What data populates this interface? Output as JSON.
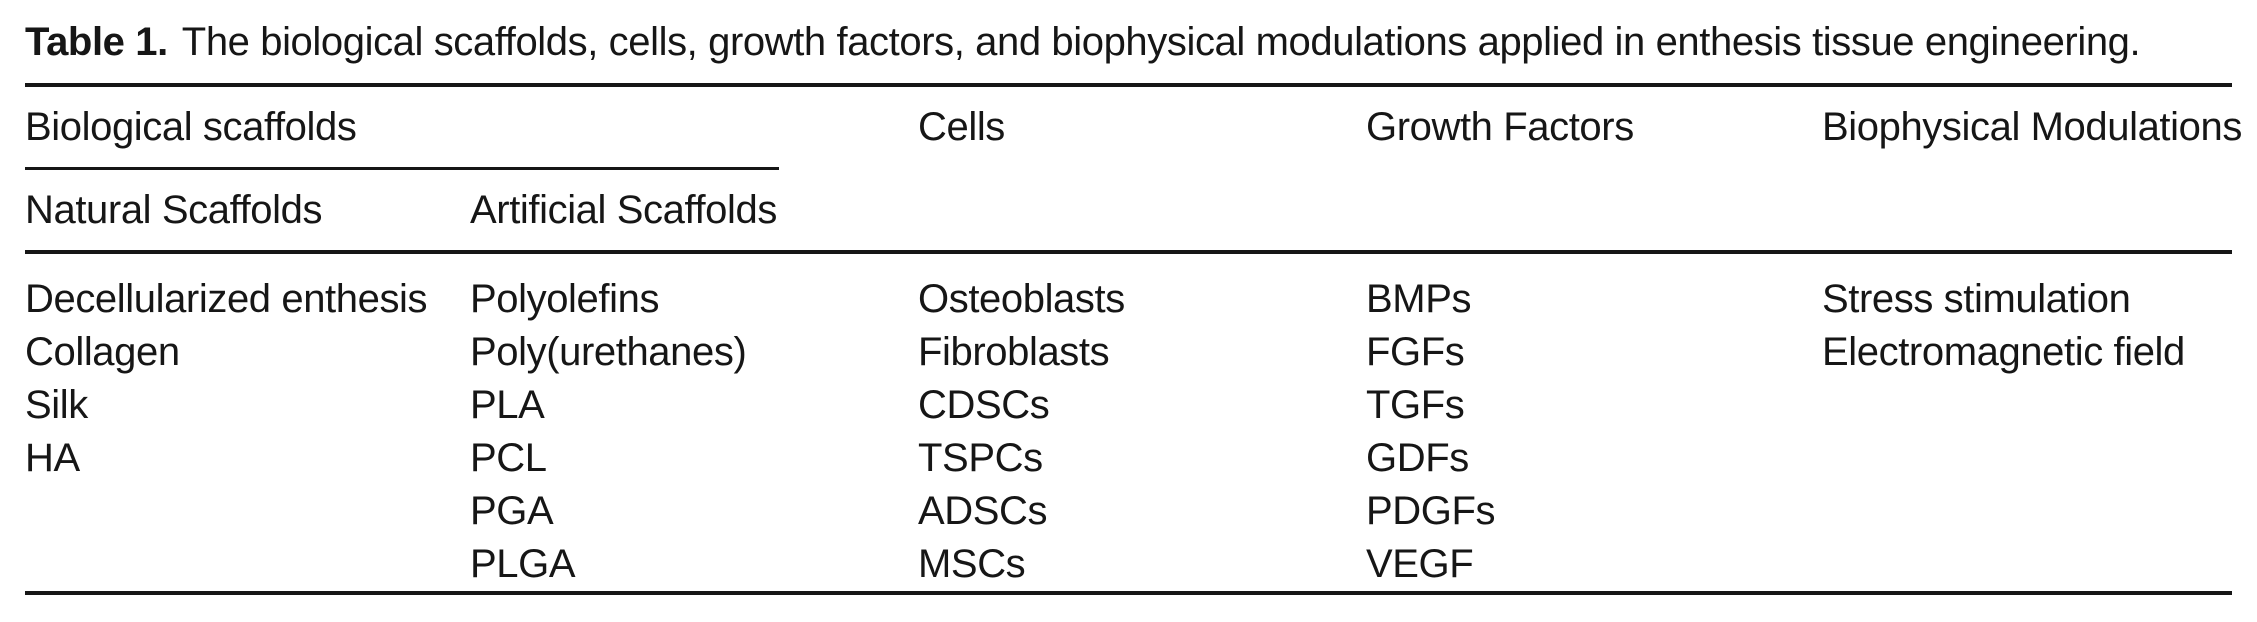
{
  "table": {
    "label": "Table 1.",
    "caption": "The biological scaffolds, cells, growth factors, and biophysical modulations applied in enthesis tissue engineering.",
    "header": {
      "group": "Biological scaffolds",
      "cells": "Cells",
      "growth_factors": "Growth Factors",
      "biophysical_modulations": "Biophysical Modulations",
      "sub_natural": "Natural Scaffolds",
      "sub_artificial": "Artificial Scaffolds"
    },
    "rows": [
      [
        "Decellularized enthesis",
        "Polyolefins",
        "Osteoblasts",
        "BMPs",
        "Stress stimulation"
      ],
      [
        "Collagen",
        "Poly(urethanes)",
        "Fibroblasts",
        "FGFs",
        "Electromagnetic field"
      ],
      [
        "Silk",
        "PLA",
        "CDSCs",
        "TGFs",
        ""
      ],
      [
        "HA",
        "PCL",
        "TSPCs",
        "GDFs",
        ""
      ],
      [
        "",
        "PGA",
        "ADSCs",
        "PDGFs",
        ""
      ],
      [
        "",
        "PLGA",
        "MSCs",
        "VEGF",
        ""
      ]
    ]
  },
  "colors": {
    "text": "#161616",
    "rule": "#161616",
    "background": "#ffffff"
  }
}
